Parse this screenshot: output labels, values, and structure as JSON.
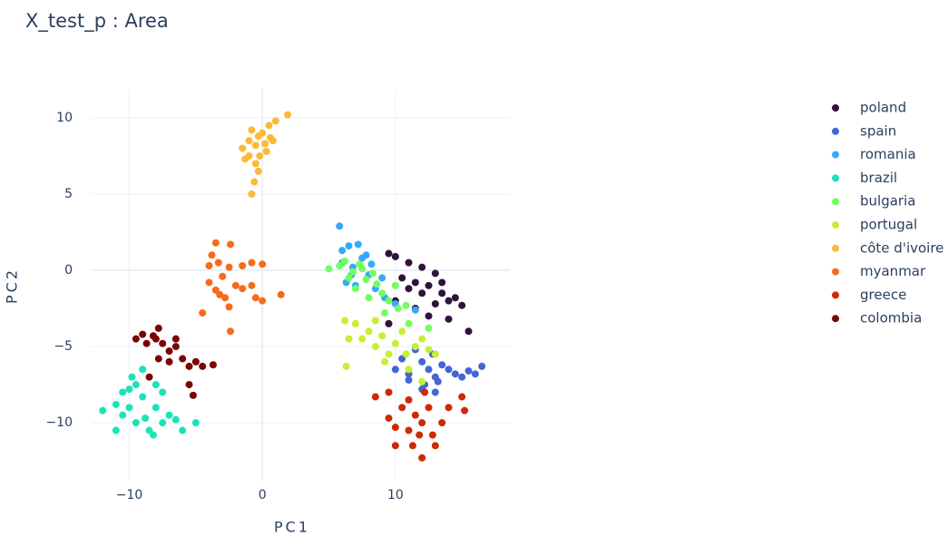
{
  "chart_data": {
    "type": "scatter",
    "title": "X_test_p : Area",
    "x_label": "PC1",
    "y_label": "PC2",
    "xlim": [
      -12.9,
      18.6
    ],
    "ylim": [
      -13.8,
      11.9
    ],
    "xticks": [
      {
        "value": -10,
        "label": "−10"
      },
      0,
      10
    ],
    "yticks": [
      {
        "value": -10,
        "label": "−10"
      },
      {
        "value": -5,
        "label": "−5"
      },
      0,
      5,
      10
    ],
    "grid": true,
    "legend": "right",
    "series": [
      {
        "name": "poland",
        "color": "#30123b",
        "x": [
          9.5,
          10,
          11,
          12,
          13,
          11.5,
          12.5,
          13.5,
          14,
          15,
          14.5,
          10.5,
          11,
          12,
          13,
          12.5,
          14,
          15.5,
          10,
          11.5,
          13.5,
          9.5
        ],
        "y": [
          1.1,
          0.9,
          0.5,
          0.2,
          -0.2,
          -0.8,
          -1,
          -1.5,
          -2,
          -2.3,
          -1.8,
          -0.5,
          -1.2,
          -1.5,
          -2.2,
          -3,
          -3.2,
          -4,
          -2,
          -2.5,
          -0.8,
          -3.5
        ]
      },
      {
        "name": "spain",
        "color": "#4465d5",
        "x": [
          10,
          10.5,
          11,
          12,
          12.5,
          13,
          13.5,
          12.2,
          13,
          14,
          15,
          15.5,
          16,
          16.5,
          14.5,
          12.8,
          11.5,
          13.2,
          12,
          11
        ],
        "y": [
          -6.5,
          -5.8,
          -6.8,
          -6,
          -6.5,
          -7,
          -6.2,
          -7.5,
          -8,
          -6.5,
          -7,
          -6.6,
          -6.8,
          -6.3,
          -6.8,
          -5.5,
          -5.2,
          -7.3,
          -7.8,
          -7.2
        ]
      },
      {
        "name": "romania",
        "color": "#36aaf9",
        "x": [
          5.8,
          6,
          6.5,
          7.2,
          6,
          6.8,
          7.5,
          8,
          6.3,
          7,
          8.5,
          9.2,
          9,
          10,
          11.5,
          7.8,
          6.7,
          8.2
        ],
        "y": [
          2.9,
          1.3,
          1.6,
          1.7,
          0.5,
          0.2,
          0.8,
          -0.3,
          -0.8,
          -1,
          -1.2,
          -1.8,
          -0.5,
          -2.2,
          -2.6,
          1,
          -0.3,
          0.4
        ]
      },
      {
        "name": "brazil",
        "color": "#1ae4b6",
        "x": [
          -12,
          -11,
          -11,
          -10.5,
          -10.5,
          -10,
          -10,
          -9.5,
          -9.8,
          -9,
          -9,
          -8.8,
          -8.5,
          -8.2,
          -8,
          -8,
          -7.5,
          -7,
          -6.5,
          -6,
          -5,
          -6.5,
          -9.5,
          -7.5
        ],
        "y": [
          -9.2,
          -8.8,
          -10.5,
          -9.5,
          -8,
          -7.8,
          -9,
          -10,
          -7,
          -6.5,
          -8.3,
          -9.7,
          -10.5,
          -10.8,
          -9,
          -7.5,
          -8,
          -9.5,
          -9.8,
          -10.5,
          -10,
          -4.5,
          -7.5,
          -10
        ]
      },
      {
        "name": "bulgaria",
        "color": "#72fe5e",
        "x": [
          5,
          5.8,
          6.2,
          6.8,
          7.3,
          7.8,
          8.3,
          8.6,
          9,
          9.5,
          10,
          10.2,
          10.8,
          7,
          8,
          9.2,
          11,
          12.5,
          7.5,
          6.5
        ],
        "y": [
          0.1,
          0.3,
          0.6,
          -0.1,
          0.4,
          -0.6,
          -0.2,
          -0.9,
          -1.5,
          -2,
          -1,
          -2.5,
          -2.3,
          -1.2,
          -1.8,
          -2.8,
          -3.5,
          -3.8,
          0.1,
          -0.5
        ]
      },
      {
        "name": "portugal",
        "color": "#c7ef34",
        "x": [
          6.2,
          6.5,
          6.3,
          7,
          7.5,
          8,
          8.5,
          9,
          9.5,
          10,
          10.5,
          10.8,
          11,
          11.5,
          12,
          12.5,
          13,
          12,
          8.5,
          9.2
        ],
        "y": [
          -3.3,
          -4.5,
          -6.3,
          -3.5,
          -4.5,
          -4,
          -5,
          -4.3,
          -5.5,
          -4.8,
          -4,
          -5.5,
          -6.5,
          -5,
          -4.5,
          -5.2,
          -5.5,
          -7.3,
          -3.3,
          -6
        ]
      },
      {
        "name": "côte d'ivoire",
        "color": "#fbb938",
        "x": [
          -1.5,
          -1,
          -1,
          -0.8,
          -0.5,
          -0.3,
          0,
          0.2,
          0.5,
          0.8,
          1,
          1.9,
          -0.5,
          -0.2,
          0.3,
          -0.6,
          -0.8,
          -0.3,
          -1.3,
          0.6
        ],
        "y": [
          8,
          8.5,
          7.5,
          9.2,
          8.2,
          8.8,
          9,
          8.3,
          9.5,
          8.5,
          9.8,
          10.2,
          7,
          7.5,
          7.8,
          5.8,
          5,
          6.5,
          7.3,
          8.7
        ]
      },
      {
        "name": "myanmar",
        "color": "#f66b19",
        "x": [
          -3.5,
          -2.4,
          -3.8,
          -4,
          -3.3,
          -3,
          -4,
          -3.5,
          -2.8,
          -4.5,
          -2.5,
          -1.5,
          -0.8,
          0,
          -0.8,
          -1.5,
          -0.5,
          0,
          -2,
          -2.5,
          -2.4,
          1.4,
          -3.2
        ],
        "y": [
          1.8,
          1.7,
          1,
          0.3,
          0.5,
          -0.4,
          -0.8,
          -1.3,
          -1.8,
          -2.8,
          0.2,
          0.3,
          0.5,
          0.4,
          -1,
          -1.2,
          -1.8,
          -2,
          -1,
          -2.4,
          -4,
          -1.6,
          -1.6
        ]
      },
      {
        "name": "greece",
        "color": "#cb2a04",
        "x": [
          8.5,
          9.5,
          9.5,
          10,
          10.5,
          11,
          11.5,
          12,
          11,
          11.3,
          12,
          12.5,
          12.8,
          13.5,
          14,
          15,
          15.2,
          10,
          12.2,
          13,
          11.8
        ],
        "y": [
          -8.3,
          -8,
          -9.7,
          -10.3,
          -9,
          -8.5,
          -9.5,
          -10,
          -10.5,
          -11.5,
          -12.3,
          -9,
          -10.8,
          -10,
          -9,
          -8.3,
          -9.2,
          -11.5,
          -8,
          -11.5,
          -10.8
        ]
      },
      {
        "name": "colombia",
        "color": "#7a0403",
        "x": [
          -9.5,
          -9,
          -8.7,
          -8.2,
          -7.8,
          -7.5,
          -7,
          -7.8,
          -7,
          -6.5,
          -6,
          -5.5,
          -5,
          -4.5,
          -3.7,
          -5.5,
          -5.2,
          -8.5,
          -6.5,
          -8
        ],
        "y": [
          -4.5,
          -4.2,
          -4.8,
          -4.3,
          -3.8,
          -4.8,
          -5.3,
          -5.8,
          -6,
          -5,
          -5.8,
          -6.3,
          -6,
          -6.3,
          -6.2,
          -7.5,
          -8.2,
          -7,
          -4.5,
          -4.5
        ]
      }
    ]
  }
}
